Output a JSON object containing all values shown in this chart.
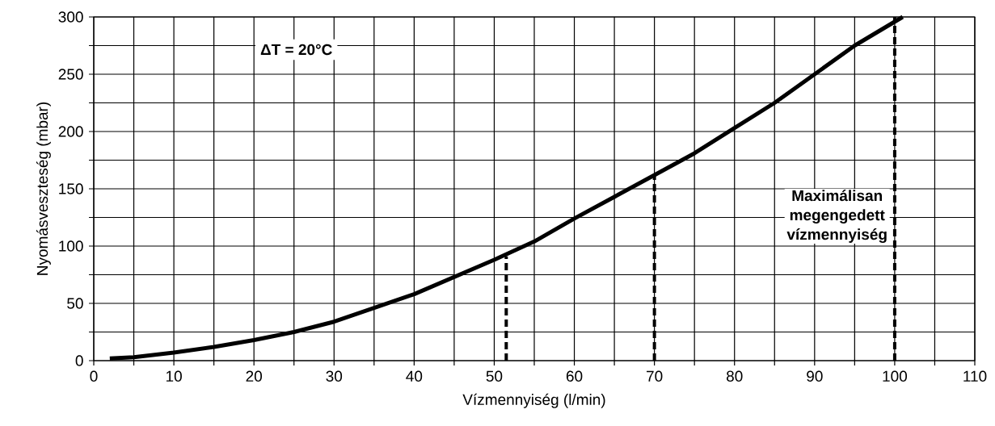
{
  "chart_data": {
    "type": "line",
    "xlabel": "Vízmennyiség (l/min)",
    "ylabel": "Nyomásveszteség (mbar)",
    "xlim": [
      0,
      110
    ],
    "ylim": [
      0,
      300
    ],
    "xticks": [
      0,
      {
        "value": 5,
        "label": null
      },
      10,
      {
        "value": 15,
        "label": null
      },
      20,
      {
        "value": 25,
        "label": null
      },
      30,
      {
        "value": 35,
        "label": null
      },
      40,
      {
        "value": 45,
        "label": null
      },
      50,
      {
        "value": 55,
        "label": null
      },
      60,
      {
        "value": 65,
        "label": null
      },
      70,
      {
        "value": 75,
        "label": null
      },
      80,
      {
        "value": 85,
        "label": null
      },
      90,
      {
        "value": 95,
        "label": null
      },
      100,
      {
        "value": 105,
        "label": null
      },
      110
    ],
    "yticks": [
      0,
      {
        "value": 25,
        "label": null
      },
      50,
      {
        "value": 75,
        "label": null
      },
      100,
      {
        "value": 125,
        "label": null
      },
      150,
      {
        "value": 175,
        "label": null
      },
      200,
      {
        "value": 225,
        "label": null
      },
      250,
      {
        "value": 275,
        "label": null
      },
      300
    ],
    "grid": true,
    "series": [
      {
        "color": "#000000",
        "x": [
          2,
          5,
          10,
          15,
          20,
          25,
          30,
          35,
          40,
          45,
          50,
          55,
          60,
          65,
          70,
          75,
          80,
          85,
          90,
          95,
          101
        ],
        "values": [
          2,
          3,
          7,
          12,
          18,
          25,
          34,
          46,
          58,
          73,
          88,
          104,
          124,
          143,
          162,
          181,
          203,
          225,
          250,
          275,
          300
        ]
      },
      {
        "color": "#000000",
        "line_style": "dashed",
        "x": [
          51.5,
          51.5
        ],
        "values": [
          0,
          91
        ]
      },
      {
        "color": "#000000",
        "line_style": "dashed",
        "x": [
          70,
          70
        ],
        "values": [
          0,
          162
        ]
      }
    ],
    "ref_lines": [
      {
        "axis": "x",
        "value": 100,
        "label": "Maximálisan megengedett vízmennyiség",
        "color": "#000000",
        "line_style": "dashed"
      }
    ],
    "annotations": [
      "ΔT = 20°C"
    ]
  }
}
